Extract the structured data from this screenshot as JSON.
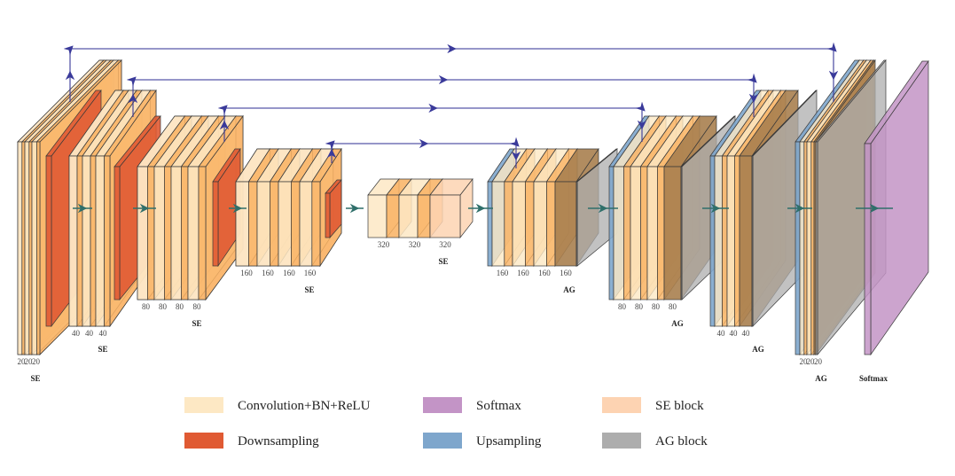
{
  "colors": {
    "conv": "#fde8c4",
    "conv_stripe": "#f9b262",
    "se": "#fdd3b2",
    "down": "#e05a33",
    "up": "#7ea6cc",
    "ag": "#adadad",
    "merged": "#a8804f",
    "softmax": "#c394c6",
    "skip": "#3a3a9a",
    "flow": "#2f6f6a"
  },
  "encoder": [
    {
      "filters": [
        "20",
        "20",
        "20"
      ],
      "tag": "SE"
    },
    {
      "filters": [
        "40",
        "40",
        "40"
      ],
      "tag": "SE"
    },
    {
      "filters": [
        "80",
        "80",
        "80",
        "80"
      ],
      "tag": "SE"
    },
    {
      "filters": [
        "160",
        "160",
        "160",
        "160"
      ],
      "tag": "SE"
    }
  ],
  "bottleneck": {
    "filters": [
      "320",
      "320",
      "320"
    ],
    "tag": "SE"
  },
  "decoder": [
    {
      "filters": [
        "160",
        "160",
        "160",
        "160"
      ],
      "tag": "AG"
    },
    {
      "filters": [
        "80",
        "80",
        "80",
        "80"
      ],
      "tag": "AG"
    },
    {
      "filters": [
        "40",
        "40",
        "40"
      ],
      "tag": "AG"
    },
    {
      "filters": [
        "20",
        "20",
        "20"
      ],
      "tag": "AG"
    }
  ],
  "output": {
    "tag": "Softmax"
  },
  "legend": [
    {
      "label": "Convolution+BN+ReLU",
      "color": "#fde8c4"
    },
    {
      "label": "Softmax",
      "color": "#c394c6"
    },
    {
      "label": "SE block",
      "color": "#fdd3b2"
    },
    {
      "label": "Downsampling",
      "color": "#e05a33"
    },
    {
      "label": "Upsampling",
      "color": "#7ea6cc"
    },
    {
      "label": "AG block",
      "color": "#adadad"
    }
  ]
}
